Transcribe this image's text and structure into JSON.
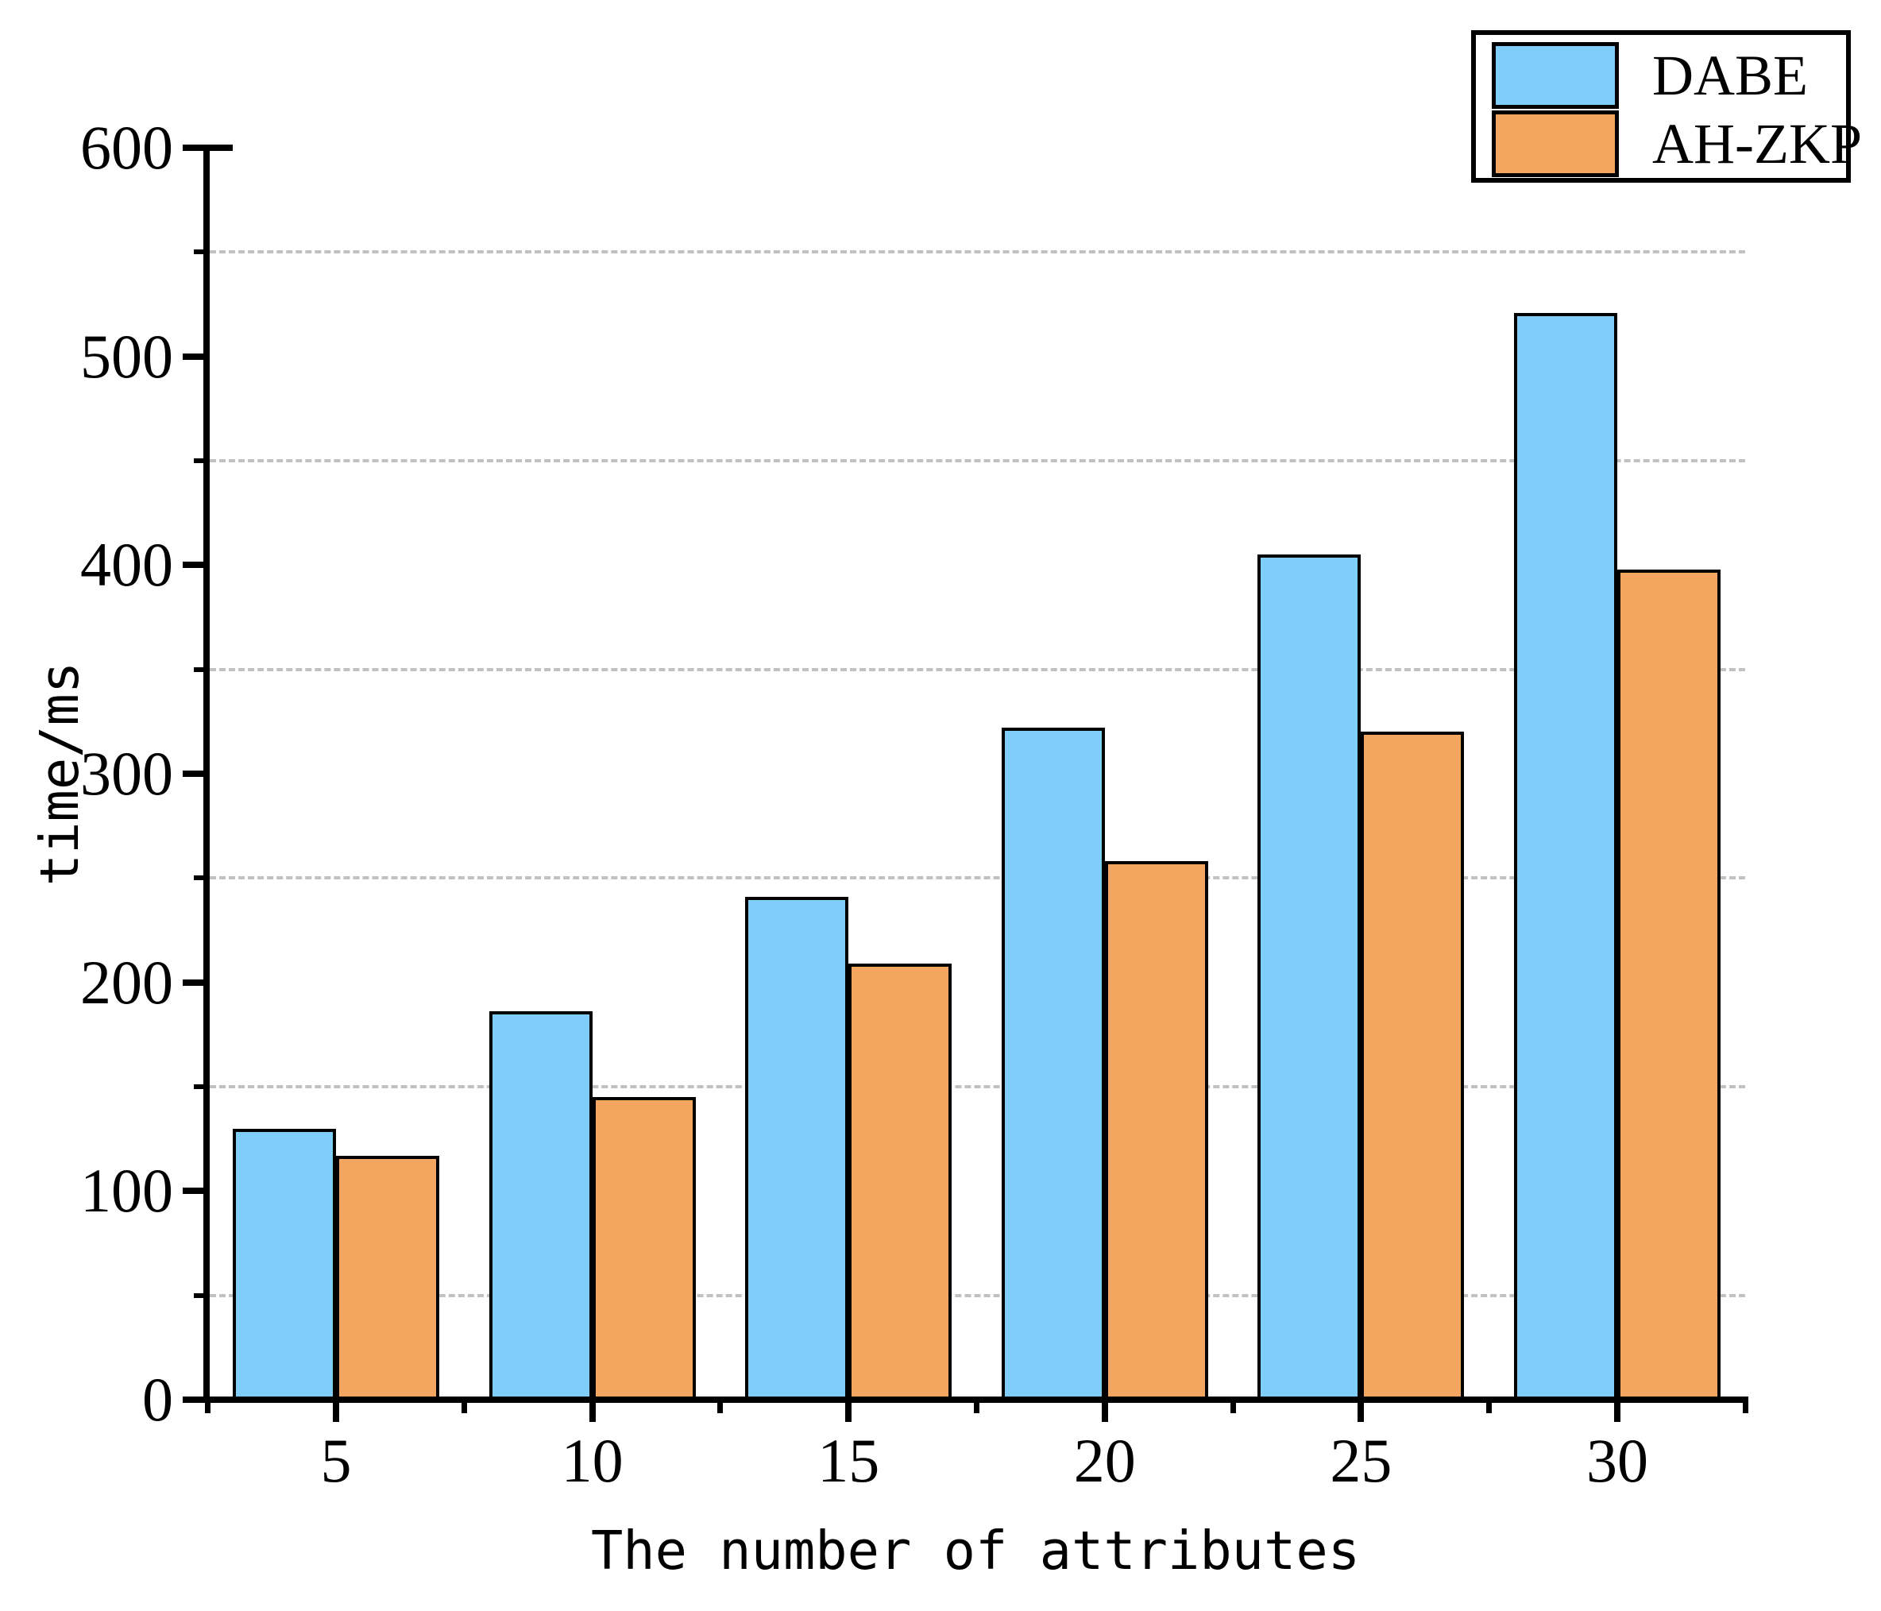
{
  "chart_data": {
    "type": "bar",
    "title": "",
    "xlabel": "The number of attributes",
    "ylabel": "time/ms",
    "categories": [
      "5",
      "10",
      "15",
      "20",
      "25",
      "30"
    ],
    "series": [
      {
        "name": "DABE",
        "color": "#7fcefa",
        "values": [
          130,
          186,
          241,
          322,
          405,
          521
        ]
      },
      {
        "name": "AH-ZKP",
        "color": "#f2a65f",
        "values": [
          117,
          145,
          209,
          258,
          320,
          398
        ]
      }
    ],
    "ylim": [
      0,
      600
    ],
    "ytick_values": [
      0,
      100,
      200,
      300,
      400,
      500,
      600
    ],
    "ytick_labels": [
      "0",
      "100",
      "200",
      "300",
      "400",
      "500",
      "600"
    ],
    "grid_values": [
      50,
      150,
      250,
      350,
      450,
      550
    ],
    "grid_style": "dashed",
    "grid_on": true,
    "legend_position": "top-right",
    "bar_border_color": "#000000",
    "axis_color": "#000000",
    "grid_color": "#c1c1c1"
  }
}
